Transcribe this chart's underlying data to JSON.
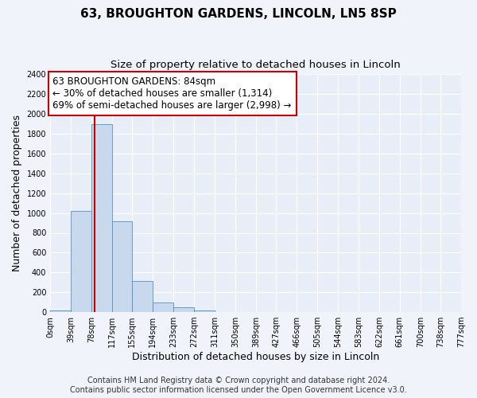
{
  "title": "63, BROUGHTON GARDENS, LINCOLN, LN5 8SP",
  "subtitle": "Size of property relative to detached houses in Lincoln",
  "xlabel": "Distribution of detached houses by size in Lincoln",
  "ylabel": "Number of detached properties",
  "bin_edges": [
    0,
    39,
    78,
    117,
    155,
    194,
    233,
    272,
    311,
    350,
    389,
    427,
    466,
    505,
    544,
    583,
    622,
    661,
    700,
    738,
    777
  ],
  "bin_labels": [
    "0sqm",
    "39sqm",
    "78sqm",
    "117sqm",
    "155sqm",
    "194sqm",
    "233sqm",
    "272sqm",
    "311sqm",
    "350sqm",
    "389sqm",
    "427sqm",
    "466sqm",
    "505sqm",
    "544sqm",
    "583sqm",
    "622sqm",
    "661sqm",
    "700sqm",
    "738sqm",
    "777sqm"
  ],
  "bar_heights": [
    20,
    1020,
    1900,
    920,
    315,
    100,
    45,
    20,
    0,
    0,
    0,
    0,
    0,
    0,
    0,
    0,
    0,
    0,
    0,
    0
  ],
  "bar_color": "#c8d8ed",
  "bar_edge_color": "#5590c8",
  "property_line_x": 84,
  "property_line_color": "#cc0000",
  "annotation_line1": "63 BROUGHTON GARDENS: 84sqm",
  "annotation_line2": "← 30% of detached houses are smaller (1,314)",
  "annotation_line3": "69% of semi-detached houses are larger (2,998) →",
  "annotation_box_color": "#ffffff",
  "annotation_box_edge": "#cc0000",
  "ylim": [
    0,
    2400
  ],
  "yticks": [
    0,
    200,
    400,
    600,
    800,
    1000,
    1200,
    1400,
    1600,
    1800,
    2000,
    2200,
    2400
  ],
  "footer1": "Contains HM Land Registry data © Crown copyright and database right 2024.",
  "footer2": "Contains public sector information licensed under the Open Government Licence v3.0.",
  "fig_background_color": "#f0f4fa",
  "plot_background_color": "#e8eef8",
  "grid_color": "#ffffff",
  "title_fontsize": 11,
  "subtitle_fontsize": 9.5,
  "axis_label_fontsize": 9,
  "tick_fontsize": 7,
  "footer_fontsize": 7,
  "annotation_fontsize": 8.5
}
